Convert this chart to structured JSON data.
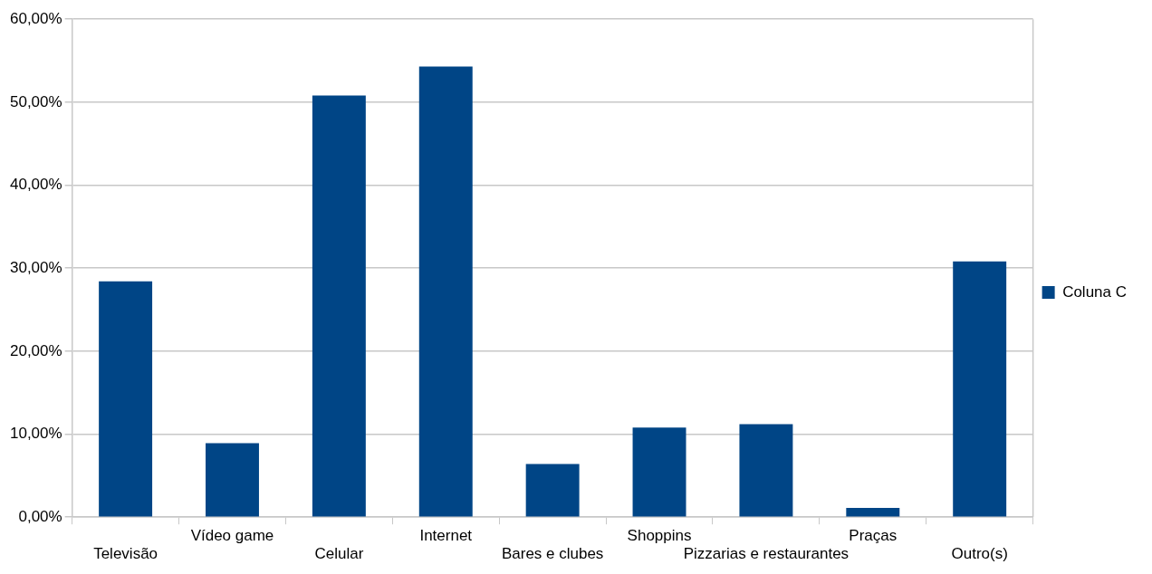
{
  "chart_data": {
    "type": "bar",
    "categories": [
      "Televisão",
      "Vídeo game",
      "Celular",
      "Internet",
      "Bares e clubes",
      "Shoppins",
      "Pizzarias e restaurantes",
      "Praças",
      "Outro(s)"
    ],
    "series": [
      {
        "name": "Coluna C",
        "color": "#004586",
        "values": [
          28.4,
          8.9,
          50.8,
          54.3,
          6.4,
          10.8,
          11.2,
          1.1,
          30.8
        ]
      }
    ],
    "ylim": [
      0,
      60
    ],
    "yticks": [
      {
        "value": 0,
        "label": "0,00%"
      },
      {
        "value": 10,
        "label": "10,00%"
      },
      {
        "value": 20,
        "label": "20,00%"
      },
      {
        "value": 30,
        "label": "30,00%"
      },
      {
        "value": 40,
        "label": "40,00%"
      },
      {
        "value": 50,
        "label": "50,00%"
      },
      {
        "value": 60,
        "label": "60,00%"
      }
    ],
    "grid": "y",
    "legend": "right"
  }
}
